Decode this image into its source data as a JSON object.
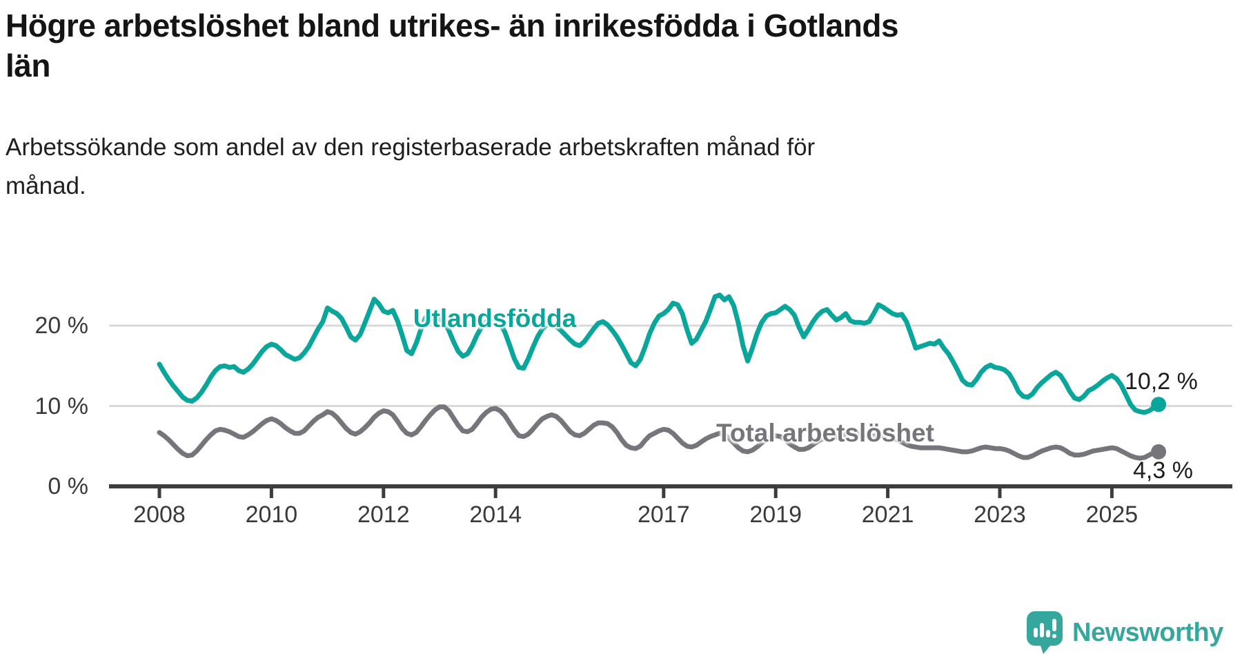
{
  "header": {
    "title_lines": [
      "Högre arbetslöshet bland utrikes- än inrikesfödda i Gotlands",
      "län"
    ],
    "subtitle_lines": [
      "Arbetssökande som andel av den registerbaserade arbetskraften månad för",
      "månad."
    ]
  },
  "footer": {
    "brand": "Newsworthy"
  },
  "colors": {
    "teal_line": "#0ba69b",
    "gray_line": "#76757c",
    "gridline": "#d9d9d9",
    "axis": "#3d3d3d",
    "tick_text": "#3a3a3a",
    "logo_teal": "#35a79d",
    "title_text": "#151515"
  },
  "chart_data": {
    "type": "line",
    "unit": "%",
    "frequency": "monthly",
    "x_start": "2008-01",
    "x_end": "2025-11",
    "ylim": [
      0,
      24.5
    ],
    "grid": "horizontal",
    "gridlines_pct": [
      10,
      20
    ],
    "y_ticks": [
      {
        "value": 0,
        "label": "0 %"
      },
      {
        "value": 10,
        "label": "10 %"
      },
      {
        "value": 20,
        "label": "20 %"
      }
    ],
    "x_ticks": [
      {
        "year": 2008,
        "label": "2008"
      },
      {
        "year": 2010,
        "label": "2010"
      },
      {
        "year": 2012,
        "label": "2012"
      },
      {
        "year": 2014,
        "label": "2014"
      },
      {
        "year": 2017,
        "label": "2017"
      },
      {
        "year": 2019,
        "label": "2019"
      },
      {
        "year": 2021,
        "label": "2021"
      },
      {
        "year": 2023,
        "label": "2023"
      },
      {
        "year": 2025,
        "label": "2025"
      }
    ],
    "series": [
      {
        "name": "Utlandsfödda",
        "color": "#0ba69b",
        "end_label": "10,2 %",
        "end_value": 10.2,
        "values": [
          15.2,
          14.2,
          13.3,
          12.5,
          11.8,
          11.1,
          10.7,
          10.6,
          11.0,
          11.7,
          12.6,
          13.6,
          14.4,
          14.9,
          15.0,
          14.8,
          14.9,
          14.4,
          14.2,
          14.6,
          15.2,
          16.0,
          16.8,
          17.4,
          17.7,
          17.5,
          17.0,
          16.4,
          16.1,
          15.8,
          16.0,
          16.6,
          17.4,
          18.5,
          19.6,
          20.5,
          22.2,
          21.8,
          21.5,
          20.9,
          19.8,
          18.6,
          18.2,
          18.9,
          20.3,
          21.8,
          23.3,
          22.7,
          21.8,
          21.6,
          21.9,
          20.6,
          18.8,
          16.9,
          16.5,
          17.8,
          19.5,
          21.0,
          21.0,
          20.9,
          20.8,
          20.4,
          19.4,
          18.0,
          16.8,
          16.2,
          16.5,
          17.5,
          18.8,
          19.8,
          20.5,
          20.9,
          20.8,
          20.2,
          19.2,
          17.6,
          15.9,
          14.8,
          14.7,
          15.9,
          17.3,
          18.6,
          19.6,
          20.1,
          20.2,
          19.9,
          19.4,
          18.8,
          18.2,
          17.7,
          17.5,
          18.0,
          18.8,
          19.6,
          20.3,
          20.5,
          20.1,
          19.4,
          18.6,
          17.6,
          16.5,
          15.4,
          15.0,
          15.8,
          17.3,
          19.0,
          20.3,
          21.2,
          21.5,
          22.0,
          22.8,
          22.6,
          21.5,
          19.5,
          17.8,
          18.3,
          19.4,
          20.5,
          22.0,
          23.6,
          23.8,
          23.2,
          23.6,
          22.5,
          20.3,
          17.5,
          15.6,
          17.2,
          19.0,
          20.4,
          21.2,
          21.5,
          21.6,
          22.0,
          22.4,
          22.0,
          21.3,
          19.8,
          18.6,
          19.5,
          20.5,
          21.3,
          21.8,
          22.0,
          21.3,
          20.7,
          21.0,
          21.5,
          20.6,
          20.4,
          20.4,
          20.3,
          20.5,
          21.5,
          22.6,
          22.3,
          21.9,
          21.5,
          21.3,
          21.4,
          20.5,
          18.9,
          17.2,
          17.4,
          17.6,
          17.8,
          17.7,
          18.1,
          17.2,
          16.5,
          15.5,
          14.4,
          13.2,
          12.7,
          12.6,
          13.3,
          14.2,
          14.8,
          15.1,
          14.8,
          14.7,
          14.5,
          14.0,
          13.0,
          11.8,
          11.2,
          11.1,
          11.5,
          12.3,
          12.9,
          13.4,
          13.9,
          14.2,
          13.8,
          12.9,
          11.8,
          11.0,
          10.8,
          11.2,
          11.9,
          12.2,
          12.6,
          13.1,
          13.5,
          13.8,
          13.4,
          12.6,
          11.4,
          10.2,
          9.5,
          9.3,
          9.2,
          9.4,
          9.8,
          10.2
        ]
      },
      {
        "name": "Total arbetslöshet",
        "color": "#76757c",
        "end_label": "4,3 %",
        "end_value": 4.3,
        "values": [
          6.7,
          6.3,
          5.8,
          5.2,
          4.6,
          4.1,
          3.8,
          3.9,
          4.4,
          5.1,
          5.8,
          6.4,
          6.9,
          7.1,
          7.0,
          6.8,
          6.5,
          6.2,
          6.1,
          6.4,
          6.8,
          7.3,
          7.8,
          8.2,
          8.4,
          8.2,
          7.8,
          7.3,
          6.9,
          6.6,
          6.6,
          6.9,
          7.5,
          8.1,
          8.6,
          8.9,
          9.3,
          9.1,
          8.6,
          7.9,
          7.2,
          6.7,
          6.5,
          6.8,
          7.3,
          7.9,
          8.6,
          9.1,
          9.4,
          9.3,
          8.9,
          8.1,
          7.2,
          6.6,
          6.4,
          6.7,
          7.4,
          8.2,
          8.9,
          9.5,
          9.9,
          9.9,
          9.4,
          8.5,
          7.6,
          6.9,
          6.8,
          7.1,
          7.8,
          8.6,
          9.2,
          9.6,
          9.7,
          9.4,
          8.8,
          7.9,
          7.0,
          6.3,
          6.2,
          6.5,
          7.1,
          7.8,
          8.4,
          8.7,
          8.9,
          8.7,
          8.2,
          7.5,
          6.8,
          6.4,
          6.3,
          6.6,
          7.1,
          7.6,
          7.9,
          7.9,
          7.8,
          7.4,
          6.7,
          5.8,
          5.1,
          4.8,
          4.7,
          5.0,
          5.7,
          6.3,
          6.6,
          6.9,
          7.1,
          7.0,
          6.6,
          6.0,
          5.4,
          5.0,
          4.9,
          5.1,
          5.5,
          5.9,
          6.2,
          6.4,
          6.6,
          6.4,
          6.0,
          5.4,
          4.8,
          4.4,
          4.3,
          4.5,
          4.9,
          5.4,
          5.8,
          6.1,
          6.3,
          6.2,
          5.8,
          5.3,
          4.9,
          4.6,
          4.6,
          4.8,
          5.2,
          5.6,
          5.9,
          6.1,
          6.2,
          6.1,
          6.2,
          6.5,
          6.6,
          6.6,
          6.5,
          6.4,
          6.3,
          6.3,
          6.3,
          6.3,
          6.2,
          6.0,
          5.8,
          5.5,
          5.2,
          5.0,
          4.9,
          4.8,
          4.8,
          4.8,
          4.8,
          4.8,
          4.7,
          4.6,
          4.5,
          4.4,
          4.3,
          4.3,
          4.4,
          4.6,
          4.8,
          4.9,
          4.8,
          4.7,
          4.7,
          4.6,
          4.4,
          4.1,
          3.8,
          3.6,
          3.6,
          3.8,
          4.1,
          4.4,
          4.6,
          4.8,
          4.9,
          4.8,
          4.5,
          4.1,
          3.9,
          3.9,
          4.0,
          4.2,
          4.4,
          4.5,
          4.6,
          4.7,
          4.8,
          4.7,
          4.4,
          4.1,
          3.8,
          3.6,
          3.5,
          3.6,
          3.9,
          4.2,
          4.3
        ]
      }
    ]
  }
}
